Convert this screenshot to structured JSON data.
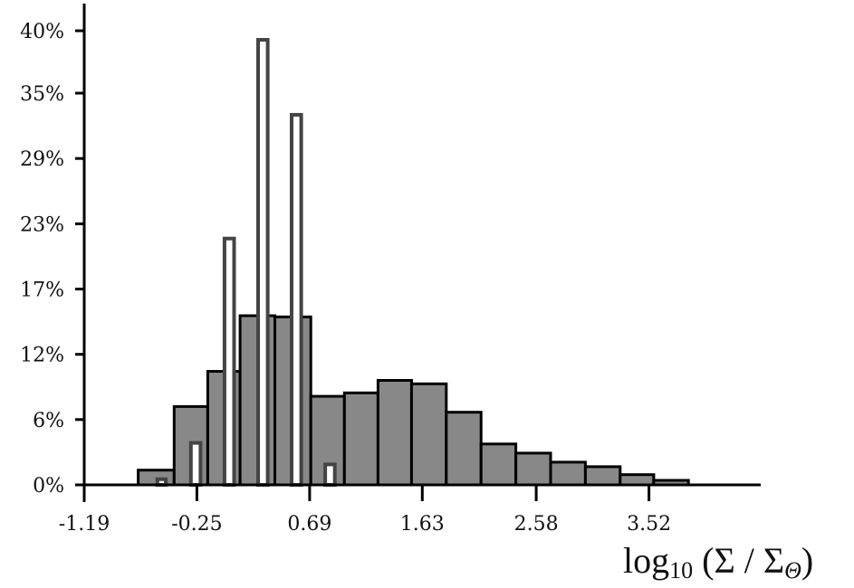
{
  "chart_data": {
    "type": "bar",
    "title": "",
    "xlabel": "log10 (Σ / ΣΘ)",
    "xlabel_parts": {
      "base": "log",
      "sub": "10",
      "expr": " (Σ / Σ",
      "sub2": "Θ",
      "close": ")"
    },
    "ylabel": "",
    "xlim": [
      -1.19,
      4.46
    ],
    "ylim": [
      0,
      40
    ],
    "x_ticks": [
      "-1.19",
      "-0.25",
      "0.69",
      "1.63",
      "2.58",
      "3.52"
    ],
    "x_tick_values": [
      -1.19,
      -0.25,
      0.69,
      1.63,
      2.58,
      3.52
    ],
    "y_ticks": [
      "0%",
      "6%",
      "12%",
      "17%",
      "23%",
      "29%",
      "35%",
      "40%"
    ],
    "y_tick_values": [
      0,
      5.75,
      11.5,
      17.25,
      23,
      28.75,
      34.5,
      40
    ],
    "grid": false,
    "legend": "none",
    "series": [
      {
        "style": "filled",
        "color": "#888888",
        "bins": [
          {
            "x0": -0.74,
            "x1": -0.44,
            "value": 1.3
          },
          {
            "x0": -0.44,
            "x1": -0.16,
            "value": 6.9
          },
          {
            "x0": -0.16,
            "x1": 0.11,
            "value": 10.0
          },
          {
            "x0": 0.11,
            "x1": 0.4,
            "value": 14.9
          },
          {
            "x0": 0.4,
            "x1": 0.7,
            "value": 14.8
          },
          {
            "x0": 0.7,
            "x1": 0.98,
            "value": 7.8
          },
          {
            "x0": 0.98,
            "x1": 1.26,
            "value": 8.1
          },
          {
            "x0": 1.26,
            "x1": 1.54,
            "value": 9.2
          },
          {
            "x0": 1.54,
            "x1": 1.83,
            "value": 8.9
          },
          {
            "x0": 1.83,
            "x1": 2.12,
            "value": 6.4
          },
          {
            "x0": 2.12,
            "x1": 2.41,
            "value": 3.6
          },
          {
            "x0": 2.41,
            "x1": 2.7,
            "value": 2.8
          },
          {
            "x0": 2.7,
            "x1": 2.99,
            "value": 2.0
          },
          {
            "x0": 2.99,
            "x1": 3.28,
            "value": 1.6
          },
          {
            "x0": 3.28,
            "x1": 3.56,
            "value": 0.9
          },
          {
            "x0": 3.56,
            "x1": 3.85,
            "value": 0.4
          }
        ]
      },
      {
        "style": "outline",
        "color": "#444444",
        "bins": [
          {
            "x0": -0.58,
            "x1": -0.51,
            "value": 0.5
          },
          {
            "x0": -0.3,
            "x1": -0.22,
            "value": 3.7
          },
          {
            "x0": -0.02,
            "x1": 0.06,
            "value": 21.7
          },
          {
            "x0": 0.26,
            "x1": 0.34,
            "value": 39.2
          },
          {
            "x0": 0.54,
            "x1": 0.62,
            "value": 32.6
          },
          {
            "x0": 0.82,
            "x1": 0.9,
            "value": 1.8
          }
        ]
      }
    ]
  }
}
